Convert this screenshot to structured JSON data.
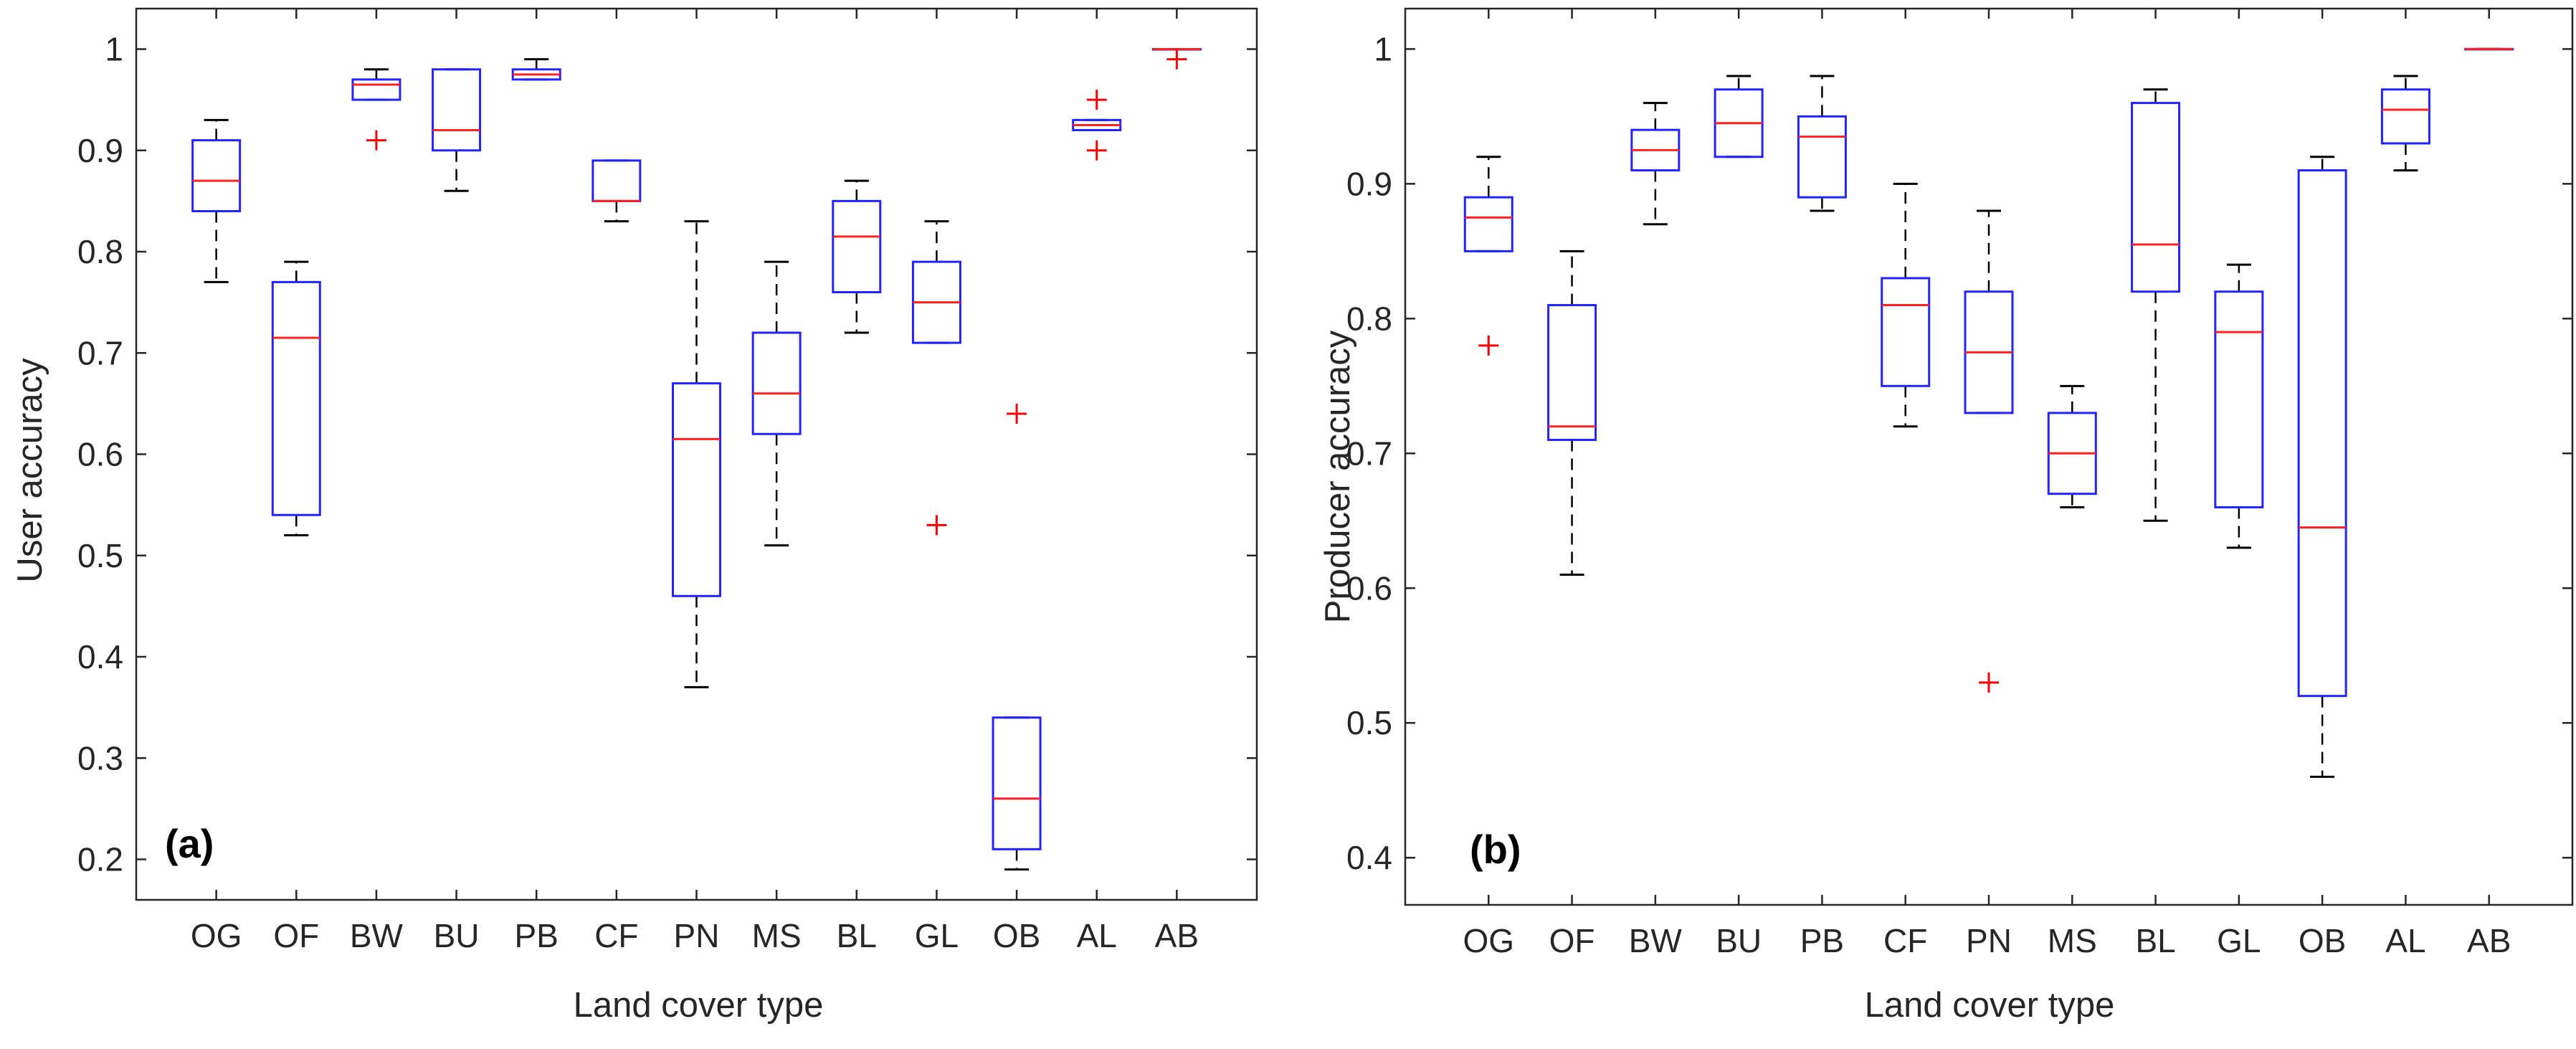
{
  "chart_data": [
    {
      "type": "box",
      "panel_label": "(a)",
      "xlabel": "Land cover type",
      "ylabel": "User accuracy",
      "ylim": [
        0.16,
        1.04
      ],
      "yticks": [
        0.2,
        0.3,
        0.4,
        0.5,
        0.6,
        0.7,
        0.8,
        0.9,
        1
      ],
      "ytick_labels": [
        "0.2",
        "0.3",
        "0.4",
        "0.5",
        "0.6",
        "0.7",
        "0.8",
        "0.9",
        "1"
      ],
      "categories": [
        "OG",
        "OF",
        "BW",
        "BU",
        "PB",
        "CF",
        "PN",
        "MS",
        "BL",
        "GL",
        "OB",
        "AL",
        "AB"
      ],
      "boxes": [
        {
          "category": "OG",
          "whisker_low": 0.77,
          "q1": 0.84,
          "median": 0.87,
          "q3": 0.91,
          "whisker_high": 0.93,
          "outliers": []
        },
        {
          "category": "OF",
          "whisker_low": 0.52,
          "q1": 0.54,
          "median": 0.715,
          "q3": 0.77,
          "whisker_high": 0.79,
          "outliers": []
        },
        {
          "category": "BW",
          "whisker_low": 0.95,
          "q1": 0.95,
          "median": 0.965,
          "q3": 0.97,
          "whisker_high": 0.98,
          "outliers": [
            0.91
          ]
        },
        {
          "category": "BU",
          "whisker_low": 0.86,
          "q1": 0.9,
          "median": 0.92,
          "q3": 0.98,
          "whisker_high": 0.98,
          "outliers": []
        },
        {
          "category": "PB",
          "whisker_low": 0.97,
          "q1": 0.97,
          "median": 0.975,
          "q3": 0.98,
          "whisker_high": 0.99,
          "outliers": []
        },
        {
          "category": "CF",
          "whisker_low": 0.83,
          "q1": 0.85,
          "median": 0.85,
          "q3": 0.89,
          "whisker_high": 0.89,
          "outliers": []
        },
        {
          "category": "PN",
          "whisker_low": 0.37,
          "q1": 0.46,
          "median": 0.615,
          "q3": 0.67,
          "whisker_high": 0.83,
          "outliers": []
        },
        {
          "category": "MS",
          "whisker_low": 0.51,
          "q1": 0.62,
          "median": 0.66,
          "q3": 0.72,
          "whisker_high": 0.79,
          "outliers": []
        },
        {
          "category": "BL",
          "whisker_low": 0.72,
          "q1": 0.76,
          "median": 0.815,
          "q3": 0.85,
          "whisker_high": 0.87,
          "outliers": []
        },
        {
          "category": "GL",
          "whisker_low": 0.71,
          "q1": 0.71,
          "median": 0.75,
          "q3": 0.79,
          "whisker_high": 0.83,
          "outliers": [
            0.53
          ]
        },
        {
          "category": "OB",
          "whisker_low": 0.19,
          "q1": 0.21,
          "median": 0.26,
          "q3": 0.34,
          "whisker_high": 0.34,
          "outliers": [
            0.64
          ]
        },
        {
          "category": "AL",
          "whisker_low": 0.92,
          "q1": 0.92,
          "median": 0.925,
          "q3": 0.93,
          "whisker_high": 0.93,
          "outliers": [
            0.95,
            0.9
          ]
        },
        {
          "category": "AB",
          "whisker_low": 1.0,
          "q1": 1.0,
          "median": 1.0,
          "q3": 1.0,
          "whisker_high": 1.0,
          "outliers": [
            0.99
          ]
        }
      ]
    },
    {
      "type": "box",
      "panel_label": "(b)",
      "xlabel": "Land cover type",
      "ylabel": "Producer accuracy",
      "ylim": [
        0.365,
        1.03
      ],
      "yticks": [
        0.4,
        0.5,
        0.6,
        0.7,
        0.8,
        0.9,
        1
      ],
      "ytick_labels": [
        "0.4",
        "0.5",
        "0.6",
        "0.7",
        "0.8",
        "0.9",
        "1"
      ],
      "categories": [
        "OG",
        "OF",
        "BW",
        "BU",
        "PB",
        "CF",
        "PN",
        "MS",
        "BL",
        "GL",
        "OB",
        "AL",
        "AB"
      ],
      "boxes": [
        {
          "category": "OG",
          "whisker_low": 0.85,
          "q1": 0.85,
          "median": 0.875,
          "q3": 0.89,
          "whisker_high": 0.92,
          "outliers": [
            0.78
          ]
        },
        {
          "category": "OF",
          "whisker_low": 0.61,
          "q1": 0.71,
          "median": 0.72,
          "q3": 0.81,
          "whisker_high": 0.85,
          "outliers": []
        },
        {
          "category": "BW",
          "whisker_low": 0.87,
          "q1": 0.91,
          "median": 0.925,
          "q3": 0.94,
          "whisker_high": 0.96,
          "outliers": []
        },
        {
          "category": "BU",
          "whisker_low": 0.92,
          "q1": 0.92,
          "median": 0.945,
          "q3": 0.97,
          "whisker_high": 0.98,
          "outliers": []
        },
        {
          "category": "PB",
          "whisker_low": 0.88,
          "q1": 0.89,
          "median": 0.935,
          "q3": 0.95,
          "whisker_high": 0.98,
          "outliers": []
        },
        {
          "category": "CF",
          "whisker_low": 0.72,
          "q1": 0.75,
          "median": 0.81,
          "q3": 0.83,
          "whisker_high": 0.9,
          "outliers": []
        },
        {
          "category": "PN",
          "whisker_low": 0.73,
          "q1": 0.73,
          "median": 0.775,
          "q3": 0.82,
          "whisker_high": 0.88,
          "outliers": [
            0.53
          ]
        },
        {
          "category": "MS",
          "whisker_low": 0.66,
          "q1": 0.67,
          "median": 0.7,
          "q3": 0.73,
          "whisker_high": 0.75,
          "outliers": []
        },
        {
          "category": "BL",
          "whisker_low": 0.65,
          "q1": 0.82,
          "median": 0.855,
          "q3": 0.96,
          "whisker_high": 0.97,
          "outliers": []
        },
        {
          "category": "GL",
          "whisker_low": 0.63,
          "q1": 0.66,
          "median": 0.79,
          "q3": 0.82,
          "whisker_high": 0.84,
          "outliers": []
        },
        {
          "category": "OB",
          "whisker_low": 0.46,
          "q1": 0.52,
          "median": 0.645,
          "q3": 0.91,
          "whisker_high": 0.92,
          "outliers": []
        },
        {
          "category": "AL",
          "whisker_low": 0.91,
          "q1": 0.93,
          "median": 0.955,
          "q3": 0.97,
          "whisker_high": 0.98,
          "outliers": []
        },
        {
          "category": "AB",
          "whisker_low": 1.0,
          "q1": 1.0,
          "median": 1.0,
          "q3": 1.0,
          "whisker_high": 1.0,
          "outliers": []
        }
      ]
    }
  ],
  "colors": {
    "box": "#2323FF",
    "median": "#FF2020",
    "outlier": "#FF0000",
    "whisker": "#000000",
    "axis": "#262626",
    "background": "#FFFFFF"
  }
}
